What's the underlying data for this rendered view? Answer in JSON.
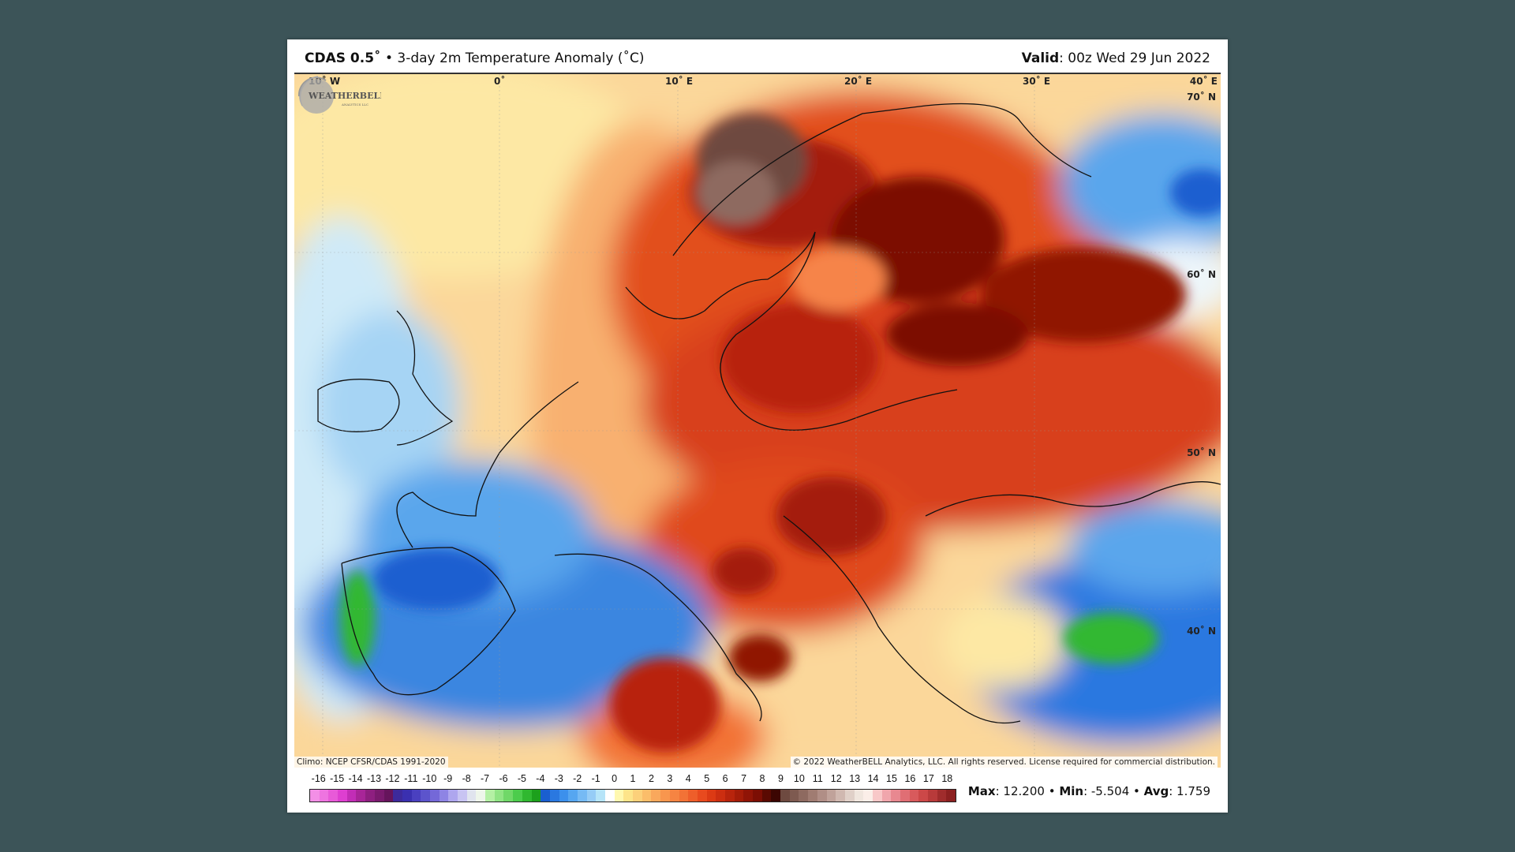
{
  "header": {
    "model": "CDAS 0.5˚",
    "separator": "•",
    "product": "3-day 2m Temperature Anomaly (˚C)",
    "valid_label": "Valid",
    "valid_value": ": 00z Wed 29 Jun 2022"
  },
  "map": {
    "lon_labels": [
      "10˚ W",
      "0˚",
      "10˚ E",
      "20˚ E",
      "30˚ E",
      "40˚ E"
    ],
    "lat_labels": [
      "70˚ N",
      "60˚ N",
      "50˚ N",
      "40˚ N"
    ],
    "climo": "Climo: NCEP CFSR/CDAS 1991-2020",
    "copyright": "© 2022 WeatherBELL Analytics, LLC. All rights reserved. License required for commercial distribution.",
    "logo_text": "WeatherBELL Analytics LLC"
  },
  "colorbar": {
    "ticks": [
      -16,
      -15,
      -14,
      -13,
      -12,
      -11,
      -10,
      -9,
      -8,
      -7,
      -6,
      -5,
      -4,
      -3,
      -2,
      -1,
      0,
      1,
      2,
      3,
      4,
      5,
      6,
      7,
      8,
      9,
      10,
      11,
      12,
      13,
      14,
      15,
      16,
      17,
      18
    ],
    "colors": [
      "#f38fe6",
      "#ee74e0",
      "#e85ad8",
      "#de3fd0",
      "#c22db6",
      "#a82598",
      "#8e1f80",
      "#7a1a6e",
      "#66145c",
      "#3d2a9c",
      "#3a30b0",
      "#4a40c0",
      "#5c54cc",
      "#7468d8",
      "#8e84e4",
      "#aea6ee",
      "#c8c4f2",
      "#e0e4ee",
      "#eef6ea",
      "#b4f0a4",
      "#90e484",
      "#70d868",
      "#4ccc4c",
      "#30b830",
      "#1ca01c",
      "#1a5fd0",
      "#2a78e0",
      "#3c90ec",
      "#56a6f0",
      "#76baf4",
      "#96ccf6",
      "#b6e4f8",
      "#ffffff",
      "#fff8b0",
      "#fde48a",
      "#fcd07a",
      "#fbbd6a",
      "#f9a85c",
      "#f8964e",
      "#f68442",
      "#f27236",
      "#ee5e2a",
      "#e84a1e",
      "#dc3a14",
      "#cc2e10",
      "#b8240c",
      "#a41c08",
      "#901406",
      "#7c0e04",
      "#5a0a02",
      "#3c0602",
      "#6e4a40",
      "#7e5a50",
      "#8e6a60",
      "#a07c72",
      "#b08e86",
      "#c0a29a",
      "#d0b8b0",
      "#e0d0c8",
      "#f0e6de",
      "#fbeee8",
      "#f8c8c8",
      "#f0a6ac",
      "#e88890",
      "#e06e74",
      "#d85a5c",
      "#cc4848",
      "#b83a3a",
      "#a02c2c",
      "#8c2020"
    ]
  },
  "stats": {
    "max_label": "Max",
    "max_value": ": 12.200",
    "min_label": "Min",
    "min_value": ": -5.504",
    "avg_label": "Avg",
    "avg_value": ": 1.759",
    "sep": " • "
  }
}
